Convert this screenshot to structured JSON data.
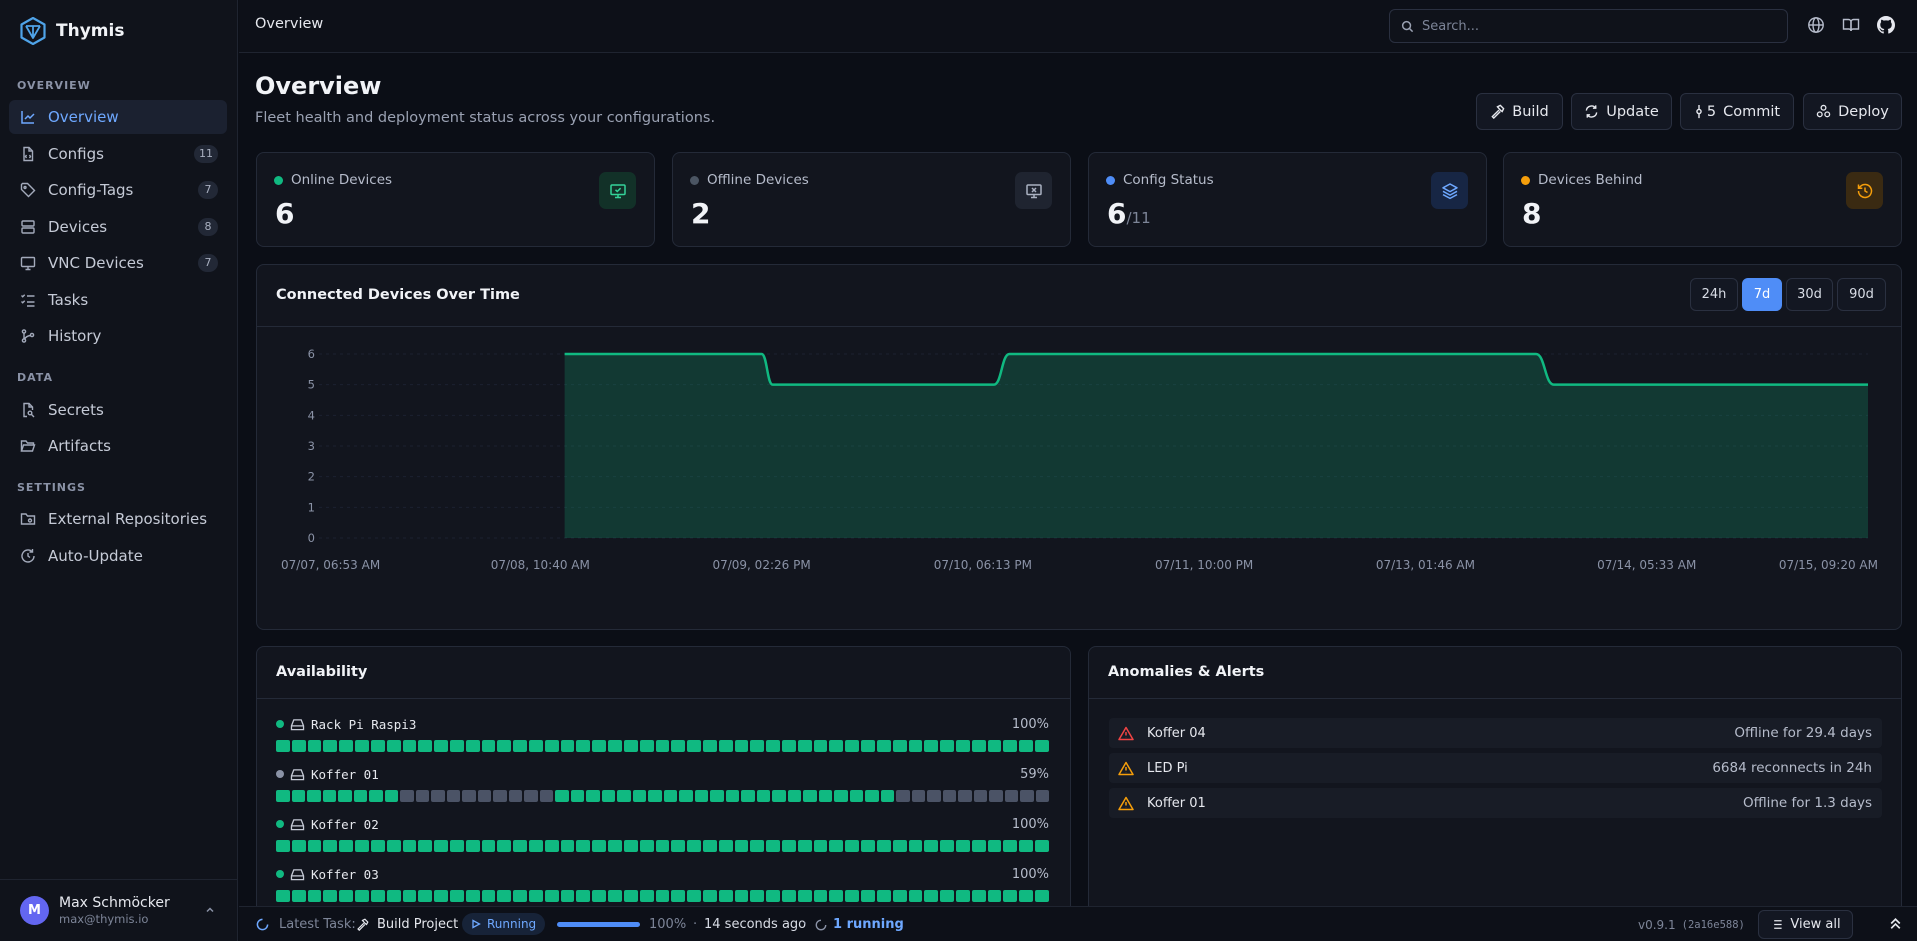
{
  "app": {
    "name": "Thymis"
  },
  "sidebar": {
    "sections": [
      {
        "title": "OVERVIEW"
      },
      {
        "title": "DATA"
      },
      {
        "title": "SETTINGS"
      }
    ],
    "items": [
      {
        "label": "Overview",
        "icon": "chart-icon",
        "active": true
      },
      {
        "label": "Configs",
        "icon": "file-code-icon",
        "count": "11"
      },
      {
        "label": "Config-Tags",
        "icon": "tag-icon",
        "count": "7"
      },
      {
        "label": "Devices",
        "icon": "server-icon",
        "count": "8"
      },
      {
        "label": "VNC Devices",
        "icon": "screen-share-icon",
        "count": "7"
      },
      {
        "label": "Tasks",
        "icon": "list-checks-icon"
      },
      {
        "label": "History",
        "icon": "git-history-icon"
      },
      {
        "label": "Secrets",
        "icon": "file-key-icon"
      },
      {
        "label": "Artifacts",
        "icon": "folder-open-icon"
      },
      {
        "label": "External Repositories",
        "icon": "folder-git-icon"
      },
      {
        "label": "Auto-Update",
        "icon": "refresh-clock-icon"
      }
    ]
  },
  "user": {
    "initial": "M",
    "name": "Max Schmöcker",
    "email": "max@thymis.io"
  },
  "header": {
    "title": "Overview",
    "search_placeholder": "Search..."
  },
  "page": {
    "title": "Overview",
    "subtitle": "Fleet health and deployment status across your configurations."
  },
  "actions": {
    "build": "Build",
    "update": "Update",
    "commit_count": "5",
    "commit": "Commit",
    "deploy": "Deploy"
  },
  "stats": [
    {
      "label": "Online Devices",
      "value": "6",
      "color": "#10b981"
    },
    {
      "label": "Offline Devices",
      "value": "2",
      "color": "#4b5563"
    },
    {
      "label": "Config Status",
      "value": "6",
      "of": "/11",
      "color": "#4f8df7"
    },
    {
      "label": "Devices Behind",
      "value": "8",
      "color": "#f59e0b"
    }
  ],
  "connected_chart": {
    "title": "Connected Devices Over Time",
    "ranges": [
      "24h",
      "7d",
      "30d",
      "90d"
    ],
    "active_range": "7d"
  },
  "chart_data": {
    "type": "area",
    "title": "Connected Devices Over Time",
    "xlabel": "",
    "ylabel": "",
    "x_ticks": [
      "07/07, 06:53 AM",
      "07/08, 10:40 AM",
      "07/09, 02:26 PM",
      "07/10, 06:13 PM",
      "07/11, 10:00 PM",
      "07/13, 01:46 AM",
      "07/14, 05:33 AM",
      "07/15, 09:20 AM"
    ],
    "ylim": [
      0,
      6
    ],
    "y_ticks": [
      0,
      1,
      2,
      3,
      4,
      5,
      6
    ],
    "grid": true,
    "series": [
      {
        "values": [
          [
            1.11,
            6
          ],
          [
            2.0,
            6
          ],
          [
            2.05,
            5
          ],
          [
            3.05,
            5
          ],
          [
            3.12,
            6
          ],
          [
            5.5,
            6
          ],
          [
            5.58,
            5
          ],
          [
            7.0,
            5
          ]
        ]
      }
    ],
    "color": "#10b981"
  },
  "availability": {
    "title": "Availability",
    "devices": [
      {
        "name": "Rack Pi Raspi3",
        "pct": "100%",
        "online": true,
        "pattern": "ggggggggggggggggggggggggggggggggggggggggggggggggg"
      },
      {
        "name": "Koffer 01",
        "pct": "59%",
        "online": false,
        "pattern": "ggggggggxxxxxxxxxxggggggggggggggggggggggxxxxxxxxxx"
      },
      {
        "name": "Koffer 02",
        "pct": "100%",
        "online": true,
        "pattern": "ggggggggggggggggggggggggggggggggggggggggggggggggg"
      },
      {
        "name": "Koffer 03",
        "pct": "100%",
        "online": true,
        "pattern": "ggggggggggggggggggggggggggggggggggggggggggggggggg"
      }
    ]
  },
  "alerts": {
    "title": "Anomalies & Alerts",
    "items": [
      {
        "device": "Koffer 04",
        "message": "Offline for 29.4 days",
        "severity": "critical"
      },
      {
        "device": "LED Pi",
        "message": "6684 reconnects in 24h",
        "severity": "warning"
      },
      {
        "device": "Koffer 01",
        "message": "Offline for 1.3 days",
        "severity": "warning"
      }
    ]
  },
  "footer": {
    "latest_label": "Latest Task:",
    "task_name": "Build Project",
    "status": "Running",
    "progress": 100,
    "progress_text": "100%",
    "sep": "·",
    "time_ago": "14 seconds ago",
    "running_count": "1 running",
    "version": "v0.9.1",
    "commit_hash": "(2a16e588)",
    "view_all": "View all"
  }
}
